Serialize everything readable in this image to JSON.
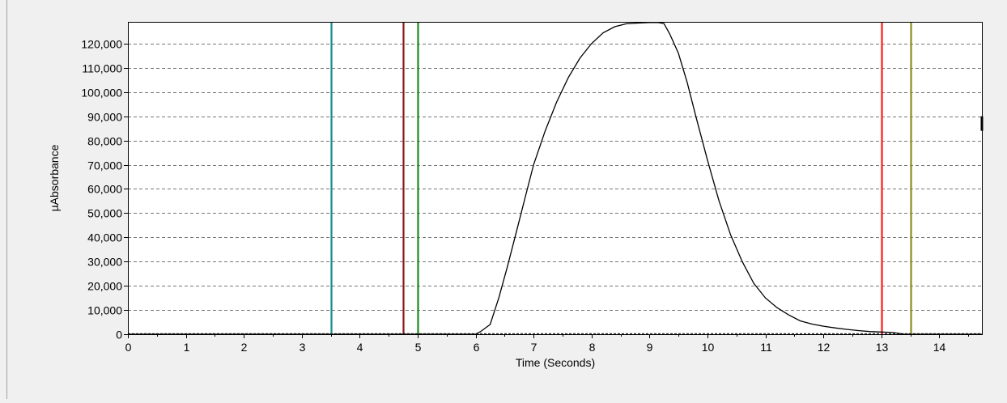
{
  "chart_data": {
    "type": "line",
    "xlabel": "Time (Seconds)",
    "ylabel": "µAbsorbance",
    "xlim": [
      0,
      14.75
    ],
    "ylim": [
      0,
      129000
    ],
    "x_ticks": [
      0,
      1,
      2,
      3,
      4,
      5,
      6,
      7,
      8,
      9,
      10,
      11,
      12,
      13,
      14
    ],
    "x_tick_labels": [
      "0",
      "1",
      "2",
      "3",
      "4",
      "5",
      "6",
      "7",
      "8",
      "9",
      "10",
      "11",
      "12",
      "13",
      "14"
    ],
    "y_ticks": [
      0,
      10000,
      20000,
      30000,
      40000,
      50000,
      60000,
      70000,
      80000,
      90000,
      100000,
      110000,
      120000
    ],
    "y_tick_labels": [
      "0",
      "10,000",
      "20,000",
      "30,000",
      "40,000",
      "50,000",
      "60,000",
      "70,000",
      "80,000",
      "90,000",
      "100,000",
      "110,000",
      "120,000"
    ],
    "grid": "horizontal-dashed",
    "series": [
      {
        "color": "#000000",
        "x": [
          0,
          6.0,
          6.08,
          6.25,
          6.4,
          6.55,
          6.7,
          6.85,
          7.0,
          7.2,
          7.4,
          7.6,
          7.8,
          8.0,
          8.2,
          8.4,
          8.6,
          8.8,
          9.0,
          9.15,
          9.25,
          9.35,
          9.5,
          9.65,
          9.8,
          10.0,
          10.2,
          10.4,
          10.6,
          10.8,
          11.0,
          11.2,
          11.4,
          11.6,
          11.8,
          12.0,
          12.2,
          12.4,
          12.6,
          12.8,
          13.0,
          13.2,
          13.4,
          14.0,
          14.75
        ],
        "y": [
          0,
          0,
          1000,
          4000,
          15000,
          28000,
          42000,
          56000,
          70000,
          84000,
          96000,
          106000,
          114000,
          120000,
          124500,
          127000,
          128200,
          128500,
          128700,
          128700,
          128300,
          124000,
          116000,
          104000,
          90000,
          72000,
          55000,
          41000,
          30000,
          21000,
          15000,
          11000,
          8000,
          5500,
          4200,
          3300,
          2600,
          2000,
          1500,
          1100,
          900,
          700,
          0,
          0,
          0
        ]
      }
    ],
    "markers": [
      {
        "x": 3.5,
        "color": "#1a8b8b"
      },
      {
        "x": 4.75,
        "color": "#8b1a1a"
      },
      {
        "x": 5.0,
        "color": "#1a8b1a"
      },
      {
        "x": 13.0,
        "color": "#ff1a1a"
      },
      {
        "x": 13.5,
        "color": "#8b8b1a"
      }
    ]
  }
}
